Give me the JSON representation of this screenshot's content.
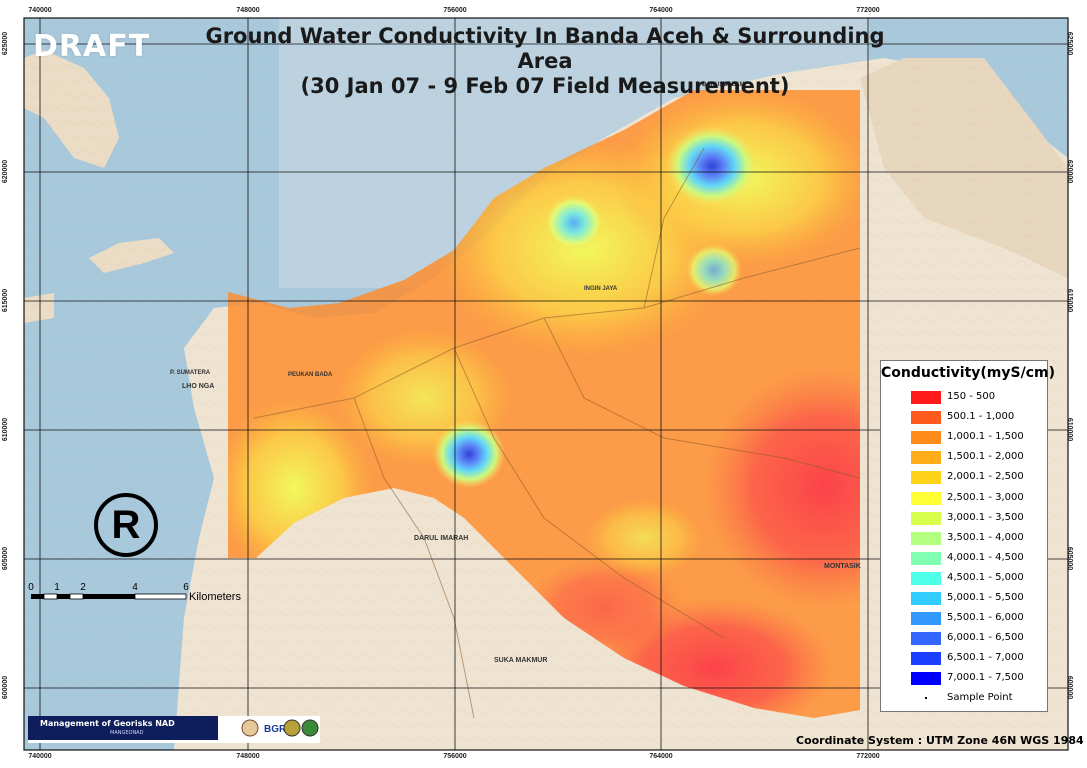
{
  "title_line1": "Ground Water Conductivity In Banda Aceh & Surrounding Area",
  "title_line2": "(30 Jan 07 - 9 Feb 07 Field Measurement)",
  "draft_label": "DRAFT",
  "registered_symbol": "R",
  "easting_labels": [
    "740000",
    "748000",
    "756000",
    "764000",
    "772000"
  ],
  "northing_labels": [
    "625000",
    "620000",
    "615000",
    "610000",
    "605000",
    "600000"
  ],
  "place_names": {
    "peukan_bada": "PEUKAN BADA",
    "lho_nga": "LHO NGA",
    "darul_imarah": "DARUL IMARAH",
    "suka_makmur": "SUKA MAKMUR",
    "montasik": "MONTASIK",
    "ingin_jaya": "INGIN JAYA",
    "sumatera": "P. SUMATERA",
    "darussalam": "DARUSSALAM"
  },
  "scale_bar": {
    "ticks": [
      "0",
      "1",
      "2",
      "4",
      "6"
    ],
    "unit": "Kilometers"
  },
  "legend": {
    "title": "Conductivity(myS/cm)",
    "classes": [
      {
        "label": "150 - 500",
        "color": "#ff1a1a"
      },
      {
        "label": "500.1 - 1,000",
        "color": "#ff5a1e"
      },
      {
        "label": "1,000.1 - 1,500",
        "color": "#ff8c1a"
      },
      {
        "label": "1,500.1 - 2,000",
        "color": "#ffae1a"
      },
      {
        "label": "2,000.1 - 2,500",
        "color": "#ffd21a"
      },
      {
        "label": "2,500.1 - 3,000",
        "color": "#ffff33"
      },
      {
        "label": "3,000.1 - 3,500",
        "color": "#d9ff4d"
      },
      {
        "label": "3,500.1 - 4,000",
        "color": "#b3ff80"
      },
      {
        "label": "4,000.1 - 4,500",
        "color": "#80ffb3"
      },
      {
        "label": "4,500.1 - 5,000",
        "color": "#4dffe6"
      },
      {
        "label": "5,000.1 - 5,500",
        "color": "#33ccff"
      },
      {
        "label": "5,500.1 - 6,000",
        "color": "#3399ff"
      },
      {
        "label": "6,000.1 - 6,500",
        "color": "#3366ff"
      },
      {
        "label": "6,500.1 - 7,000",
        "color": "#1a3dff"
      },
      {
        "label": "7,000.1 - 7,500",
        "color": "#0000ff"
      }
    ],
    "sample_point_label": "Sample Point"
  },
  "logo": {
    "org": "Management of Georisks NAD",
    "sub": "MANGEONAD",
    "partner": "BGR"
  },
  "coordinate_system": "Coordinate System : UTM Zone 46N WGS 1984",
  "colors": {
    "sea": "#a8c8dc",
    "land": "#efe4d2",
    "overlay_base": "#ff8c2a",
    "grid": "#111111"
  }
}
